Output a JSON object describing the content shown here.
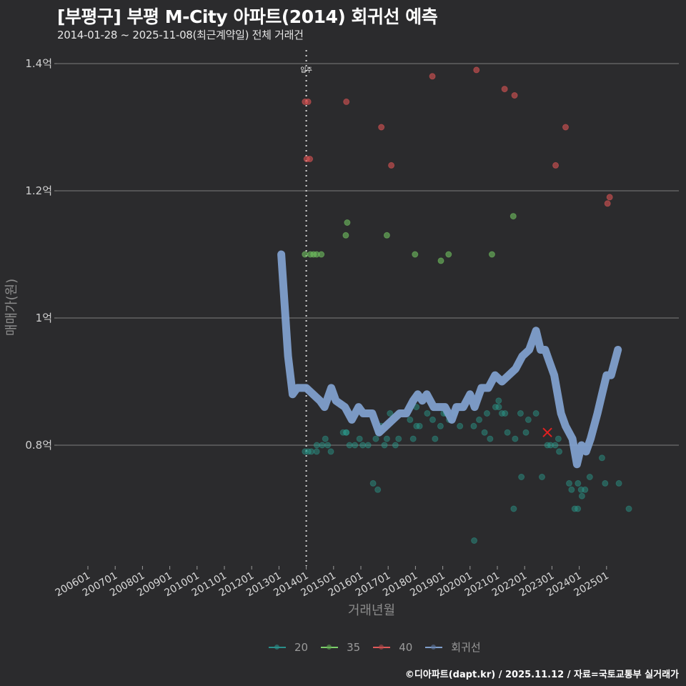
{
  "header": {
    "title": "[부평구] 부평 M-City 아파트(2014) 회귀선 예측",
    "subtitle": "2014-01-28 ~ 2025-11-08(최근계약일) 전체 거래건"
  },
  "footer": {
    "credit": "©디아파트(dapt.kr) / 2025.11.12 / 자료=국토교통부 실거래가"
  },
  "legend": {
    "items": [
      {
        "label": "20",
        "color": "#2aa198"
      },
      {
        "label": "35",
        "color": "#7ccf6a"
      },
      {
        "label": "40",
        "color": "#e05a5a"
      },
      {
        "label": "회귀선",
        "color": "#7f9fcc"
      }
    ]
  },
  "annotation": {
    "label": "입주",
    "x": "201401"
  },
  "colors": {
    "background": "#2b2b2d",
    "grid": "#6e6e6e",
    "s20": "#2aa198",
    "s35": "#6fbf5f",
    "s40": "#d95454",
    "regression": "#7f9fcc",
    "marker_x": "#e02020"
  },
  "chart_data": {
    "type": "scatter",
    "title": "[부평구] 부평 M-City 아파트(2014) 회귀선 예측",
    "subtitle": "2014-01-28 ~ 2025-11-08(최근계약일) 전체 거래건",
    "xlabel": "거래년월",
    "ylabel": "매매가(원)",
    "x_ticks": [
      "200601",
      "200701",
      "200801",
      "200901",
      "201001",
      "201101",
      "201201",
      "201301",
      "201401",
      "201501",
      "201601",
      "201701",
      "201801",
      "201901",
      "202001",
      "202101",
      "202201",
      "202301",
      "202401",
      "202501"
    ],
    "y_ticks": [
      {
        "value": 1.4,
        "label": "1.4억"
      },
      {
        "value": 1.2,
        "label": "1.2억"
      },
      {
        "value": 1.0,
        "label": "1억"
      },
      {
        "value": 0.8,
        "label": "0.8억"
      }
    ],
    "ylim": [
      0.6,
      1.42
    ],
    "grid": true,
    "legend_position": "bottom",
    "vline": {
      "x": "201401",
      "label": "입주"
    },
    "highlight": {
      "x": "202211",
      "y": 0.82,
      "marker": "x"
    },
    "series": [
      {
        "name": "40",
        "points": [
          [
            "201401",
            1.34
          ],
          [
            "201402",
            1.34
          ],
          [
            "201401",
            1.25
          ],
          [
            "201402",
            1.25
          ],
          [
            "201507",
            1.34
          ],
          [
            "201610",
            1.3
          ],
          [
            "201702",
            1.24
          ],
          [
            "201809",
            1.38
          ],
          [
            "202004",
            1.39
          ],
          [
            "202104",
            1.36
          ],
          [
            "202108",
            1.35
          ],
          [
            "202303",
            1.24
          ],
          [
            "202307",
            1.3
          ],
          [
            "202502",
            1.19
          ],
          [
            "202502",
            1.18
          ]
        ]
      },
      {
        "name": "35",
        "points": [
          [
            "201401",
            1.1
          ],
          [
            "201403",
            1.1
          ],
          [
            "201404",
            1.1
          ],
          [
            "201405",
            1.1
          ],
          [
            "201408",
            1.1
          ],
          [
            "201507",
            1.15
          ],
          [
            "201506",
            1.13
          ],
          [
            "201701",
            1.13
          ],
          [
            "201801",
            1.1
          ],
          [
            "201812",
            1.09
          ],
          [
            "201903",
            1.1
          ],
          [
            "202011",
            1.1
          ],
          [
            "202108",
            1.16
          ]
        ]
      },
      {
        "name": "20",
        "points": [
          [
            "201401",
            0.79
          ],
          [
            "201402",
            0.79
          ],
          [
            "201403",
            0.79
          ],
          [
            "201405",
            0.79
          ],
          [
            "201406",
            0.8
          ],
          [
            "201408",
            0.8
          ],
          [
            "201409",
            0.81
          ],
          [
            "201411",
            0.8
          ],
          [
            "201412",
            0.79
          ],
          [
            "201505",
            0.82
          ],
          [
            "201506",
            0.82
          ],
          [
            "201507",
            0.82
          ],
          [
            "201508",
            0.8
          ],
          [
            "201510",
            0.8
          ],
          [
            "201601",
            0.81
          ],
          [
            "201602",
            0.8
          ],
          [
            "201604",
            0.8
          ],
          [
            "201607",
            0.81
          ],
          [
            "201609",
            0.82
          ],
          [
            "201610",
            0.83
          ],
          [
            "201611",
            0.8
          ],
          [
            "201701",
            0.81
          ],
          [
            "201702",
            0.85
          ],
          [
            "201704",
            0.8
          ],
          [
            "201705",
            0.81
          ],
          [
            "201711",
            0.84
          ],
          [
            "201712",
            0.81
          ],
          [
            "201801",
            0.86
          ],
          [
            "201802",
            0.83
          ],
          [
            "201803",
            0.83
          ],
          [
            "201806",
            0.85
          ],
          [
            "201808",
            0.84
          ],
          [
            "201810",
            0.81
          ],
          [
            "201812",
            0.83
          ],
          [
            "201901",
            0.85
          ],
          [
            "201903",
            0.85
          ],
          [
            "201904",
            0.84
          ],
          [
            "201906",
            0.85
          ],
          [
            "201908",
            0.83
          ],
          [
            "202003",
            0.83
          ],
          [
            "202005",
            0.84
          ],
          [
            "202007",
            0.82
          ],
          [
            "202009",
            0.85
          ],
          [
            "202010",
            0.81
          ],
          [
            "202012",
            0.86
          ],
          [
            "202101",
            0.87
          ],
          [
            "202102",
            0.86
          ],
          [
            "202103",
            0.85
          ],
          [
            "202104",
            0.85
          ],
          [
            "202106",
            0.82
          ],
          [
            "202109",
            0.81
          ],
          [
            "202111",
            0.85
          ],
          [
            "202201",
            0.82
          ],
          [
            "202203",
            0.84
          ],
          [
            "202206",
            0.85
          ],
          [
            "201606",
            0.74
          ],
          [
            "201609",
            0.73
          ],
          [
            "202003",
            0.65
          ],
          [
            "202108",
            0.7
          ],
          [
            "202111",
            0.75
          ],
          [
            "202209",
            0.75
          ],
          [
            "202211",
            0.8
          ],
          [
            "202212",
            0.8
          ],
          [
            "202303",
            0.8
          ],
          [
            "202304",
            0.81
          ],
          [
            "202304",
            0.79
          ],
          [
            "202308",
            0.74
          ],
          [
            "202310",
            0.73
          ],
          [
            "202311",
            0.7
          ],
          [
            "202312",
            0.7
          ],
          [
            "202401",
            0.74
          ],
          [
            "202402",
            0.73
          ],
          [
            "202402",
            0.72
          ],
          [
            "202403",
            0.73
          ],
          [
            "202406",
            0.75
          ],
          [
            "202411",
            0.78
          ],
          [
            "202412",
            0.74
          ],
          [
            "202507",
            0.74
          ],
          [
            "202511",
            0.7
          ]
        ]
      },
      {
        "name": "회귀선",
        "points": [
          [
            "201302",
            1.1
          ],
          [
            "201305",
            0.94
          ],
          [
            "201307",
            0.88
          ],
          [
            "201309",
            0.89
          ],
          [
            "201311",
            0.89
          ],
          [
            "201401",
            0.89
          ],
          [
            "201404",
            0.88
          ],
          [
            "201407",
            0.87
          ],
          [
            "201409",
            0.86
          ],
          [
            "201412",
            0.89
          ],
          [
            "201502",
            0.87
          ],
          [
            "201506",
            0.86
          ],
          [
            "201509",
            0.84
          ],
          [
            "201512",
            0.86
          ],
          [
            "201602",
            0.85
          ],
          [
            "201604",
            0.85
          ],
          [
            "201606",
            0.85
          ],
          [
            "201609",
            0.82
          ],
          [
            "201612",
            0.83
          ],
          [
            "201703",
            0.84
          ],
          [
            "201706",
            0.85
          ],
          [
            "201709",
            0.85
          ],
          [
            "201712",
            0.87
          ],
          [
            "201802",
            0.88
          ],
          [
            "201804",
            0.87
          ],
          [
            "201806",
            0.88
          ],
          [
            "201809",
            0.86
          ],
          [
            "201811",
            0.86
          ],
          [
            "201902",
            0.86
          ],
          [
            "201905",
            0.84
          ],
          [
            "201907",
            0.86
          ],
          [
            "201910",
            0.86
          ],
          [
            "202001",
            0.88
          ],
          [
            "202003",
            0.86
          ],
          [
            "202006",
            0.89
          ],
          [
            "202009",
            0.89
          ],
          [
            "202012",
            0.91
          ],
          [
            "202103",
            0.9
          ],
          [
            "202106",
            0.91
          ],
          [
            "202109",
            0.92
          ],
          [
            "202112",
            0.94
          ],
          [
            "202203",
            0.95
          ],
          [
            "202206",
            0.98
          ],
          [
            "202208",
            0.95
          ],
          [
            "202210",
            0.95
          ],
          [
            "202212",
            0.93
          ],
          [
            "202302",
            0.91
          ],
          [
            "202305",
            0.85
          ],
          [
            "202307",
            0.83
          ],
          [
            "202310",
            0.81
          ],
          [
            "202312",
            0.77
          ],
          [
            "202402",
            0.8
          ],
          [
            "202404",
            0.79
          ],
          [
            "202406",
            0.81
          ],
          [
            "202409",
            0.85
          ],
          [
            "202411",
            0.88
          ],
          [
            "202501",
            0.91
          ],
          [
            "202503",
            0.91
          ],
          [
            "202506",
            0.95
          ]
        ]
      }
    ]
  }
}
